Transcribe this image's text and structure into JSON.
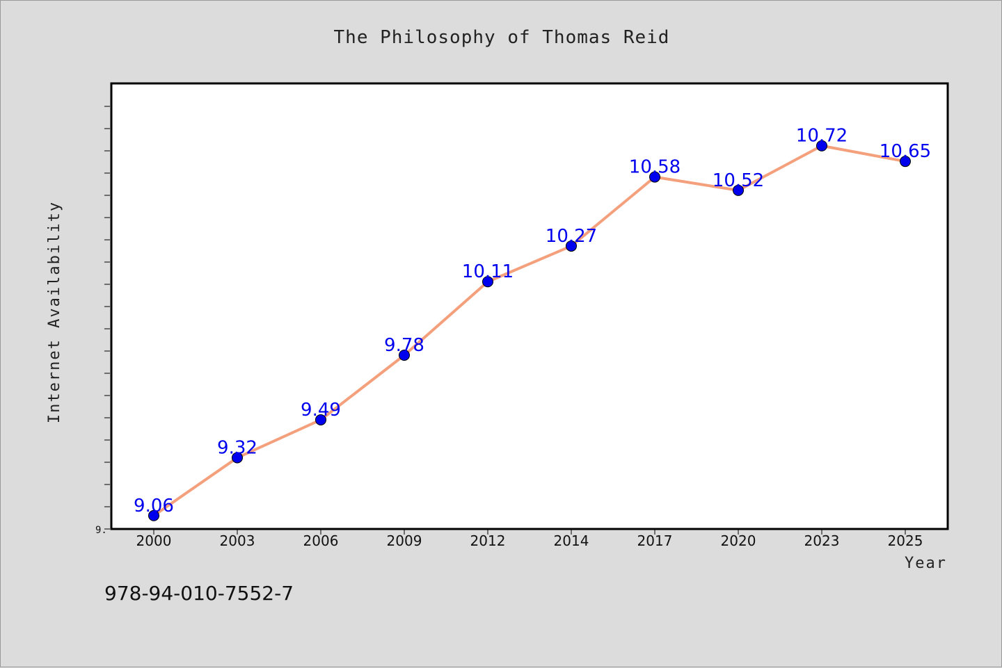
{
  "chart_data": {
    "type": "line",
    "title": "The Philosophy of Thomas Reid",
    "xlabel": "Year",
    "ylabel": "Internet Availability",
    "categories": [
      "2000",
      "2003",
      "2006",
      "2009",
      "2012",
      "2014",
      "2017",
      "2020",
      "2023",
      "2025"
    ],
    "series": [
      {
        "values": [
          9.06,
          9.32,
          9.49,
          9.78,
          10.11,
          10.27,
          10.58,
          10.52,
          10.72,
          10.65
        ],
        "labels": [
          "9.06",
          "9.32",
          "9.49",
          "9.78",
          "10.11",
          "10.27",
          "10.58",
          "10.52",
          "10.72",
          "10.65"
        ],
        "line_color": "#f4a07c",
        "marker_color": "#0000ee"
      }
    ],
    "ylim": [
      9.0,
      11.0
    ],
    "ytick_label": "9.",
    "grid": false,
    "legend": "none"
  },
  "footer": {
    "isbn": "978-94-010-7552-7"
  }
}
